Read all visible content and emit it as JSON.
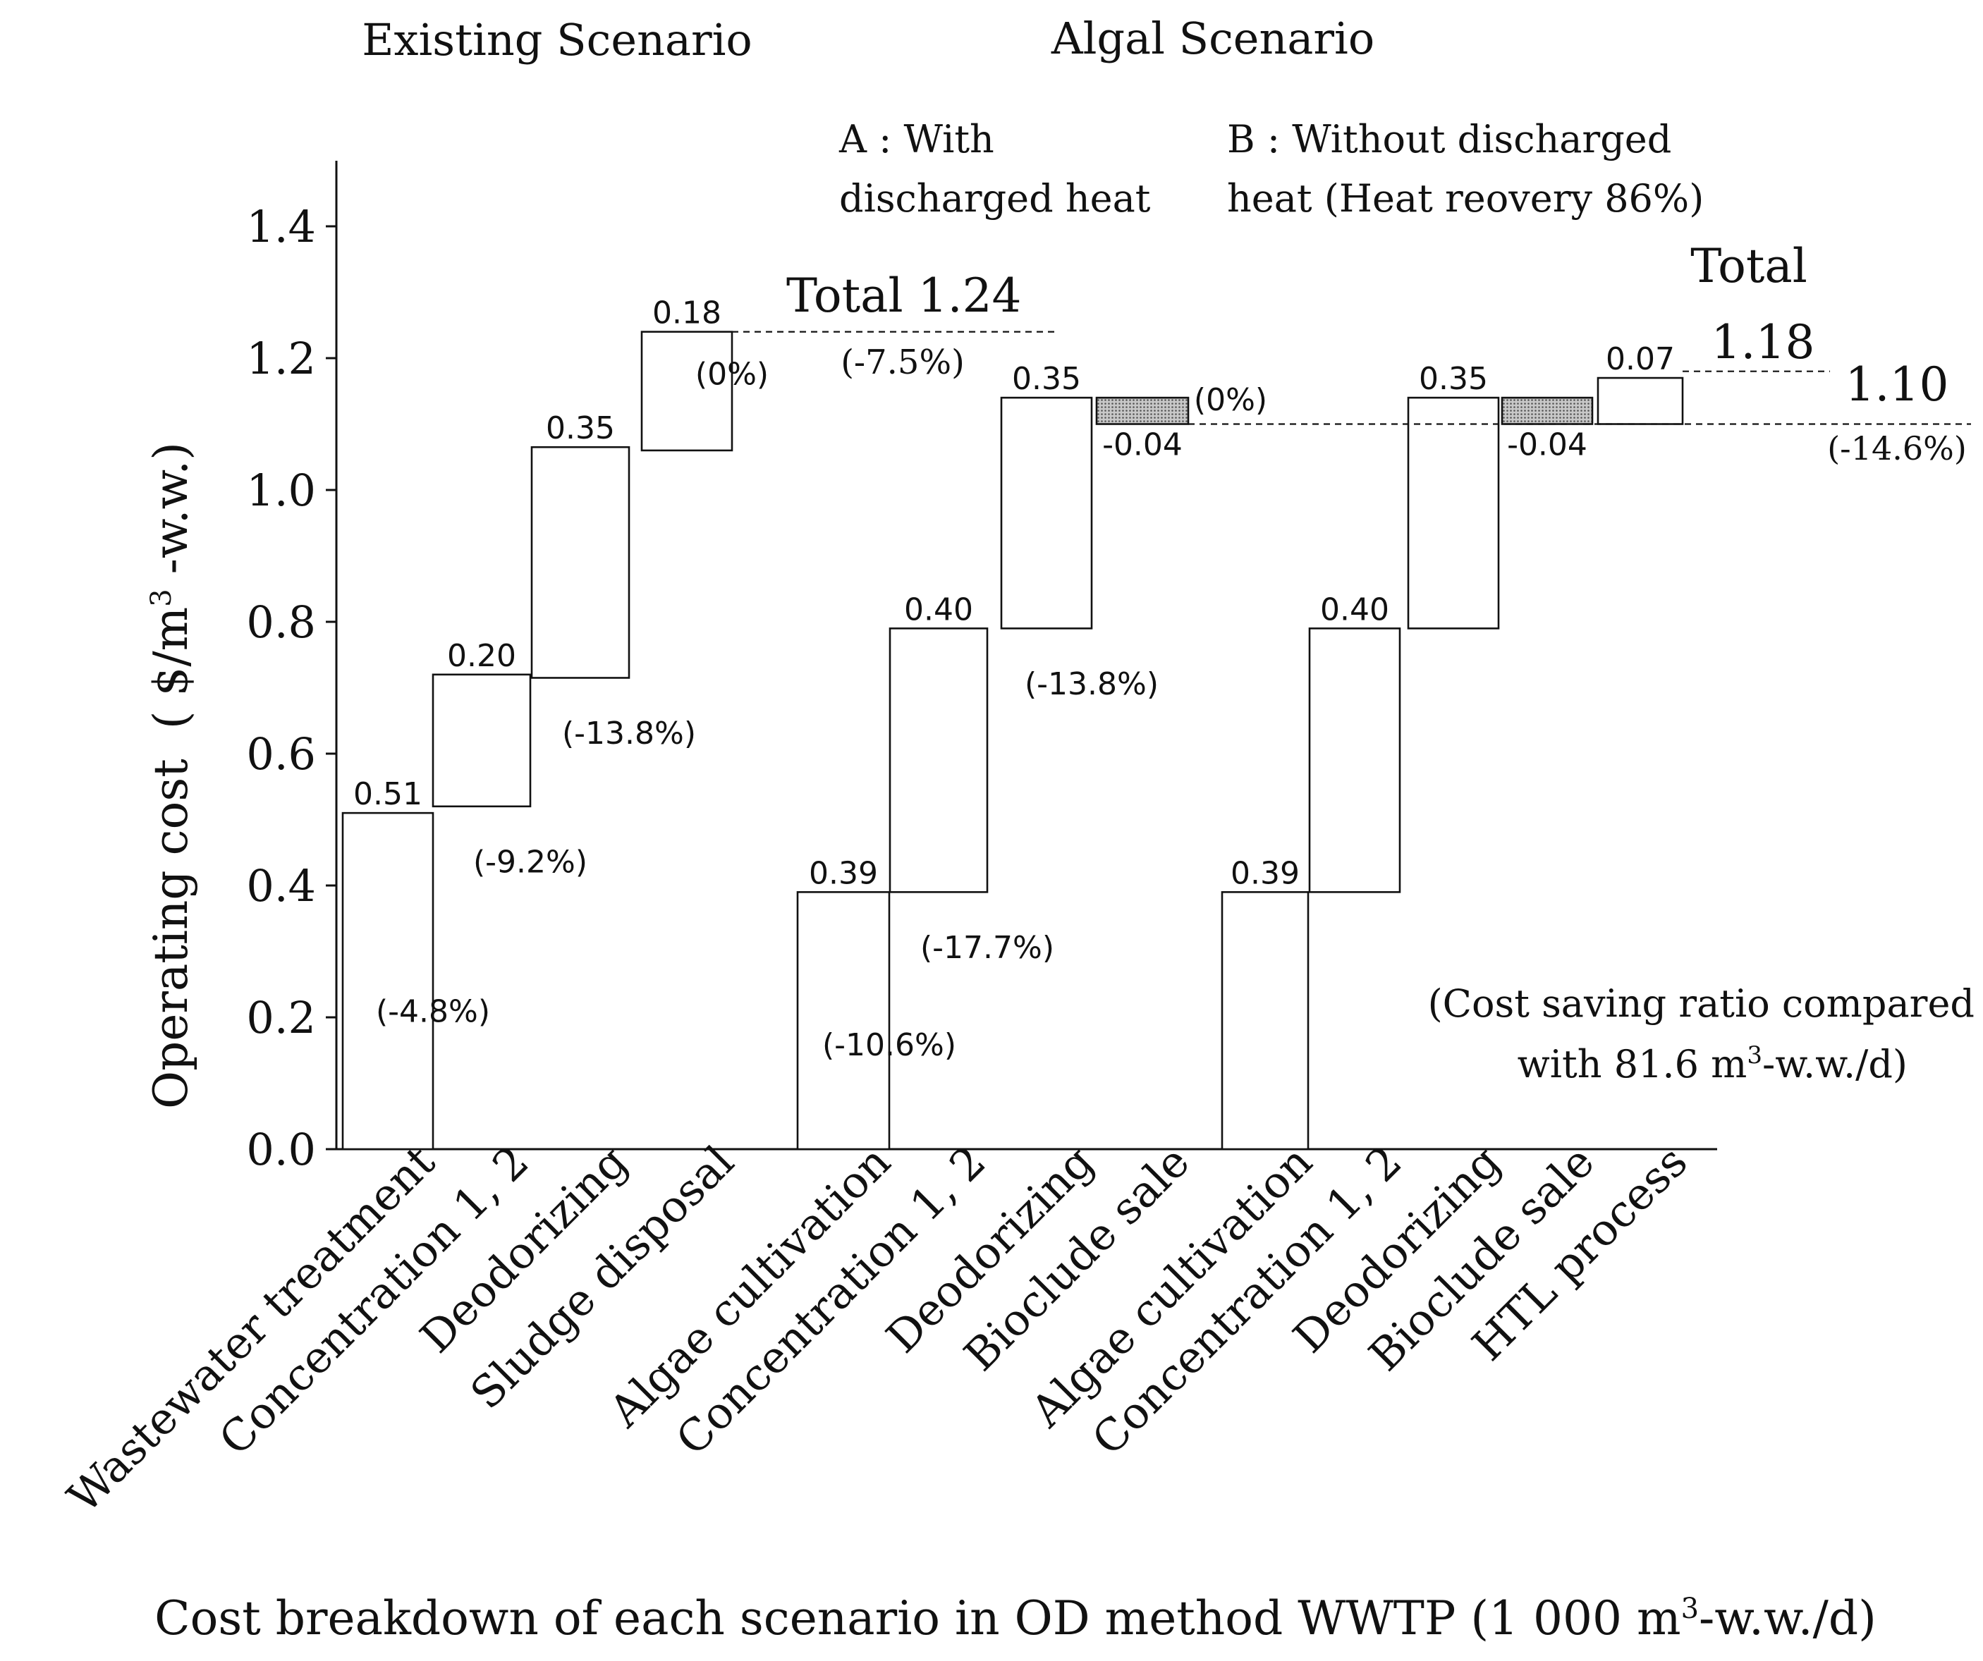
{
  "chart_data": {
    "type": "bar",
    "subtype": "waterfall",
    "xlabel_parts": [
      "Cost breakdown of each scenario in OD method WWTP (1 000 m",
      "3",
      "-w.w./d)"
    ],
    "ylabel_parts": [
      "Operating cost  ( $/m",
      "3",
      " -w.w.)"
    ],
    "ylim": [
      0,
      1.5
    ],
    "yticks": [
      "0.0",
      "0.2",
      "0.4",
      "0.6",
      "0.8",
      "1.0",
      "1.2",
      "1.4"
    ],
    "ytick_values": [
      0,
      0.2,
      0.4,
      0.6,
      0.8,
      1.0,
      1.2,
      1.4
    ],
    "headers": {
      "existing": "Existing Scenario",
      "algal": "Algal Scenario",
      "a_line1": "A : With",
      "a_line2": "discharged heat",
      "b_line1": "B : Without discharged",
      "b_line2": "heat (Heat reovery 86%)"
    },
    "categories": [
      "Wastewater treatment",
      "Concentration 1, 2",
      "Deodorizing",
      "Sludge disposal",
      "Algae cultivation",
      "Concentration 1, 2",
      "Deodorizing",
      "Bioclude sale",
      "Algae cultivation",
      "Concentration 1, 2",
      "Deodorizing",
      "Bioclude sale",
      "HTL process"
    ],
    "series": [
      {
        "values": [
          0.51,
          0.2,
          0.35,
          0.18,
          0.39,
          0.4,
          0.35,
          -0.04,
          0.39,
          0.4,
          0.35,
          -0.04,
          0.07
        ],
        "base": [
          0.0,
          0.52,
          0.715,
          1.06,
          0.0,
          0.39,
          0.79,
          1.14,
          0.0,
          0.39,
          0.79,
          1.14,
          1.1
        ],
        "value_labels": [
          "0.51",
          "0.20",
          "0.35",
          "0.18",
          "0.39",
          "0.40",
          "0.35",
          "-0.04",
          "0.39",
          "0.40",
          "0.35",
          "-0.04",
          "0.07"
        ],
        "saving_labels": [
          "(-4.8%)",
          "(-9.2%)",
          "(-13.8%)",
          "(0%)",
          "(-10.6%)",
          "(-17.7%)",
          "(-13.8%)",
          "(0%)",
          "",
          "",
          "",
          "",
          ""
        ]
      }
    ],
    "totals": [
      {
        "label": "Total 1.24",
        "value": 1.24,
        "saving": "(-7.5%)"
      },
      {
        "label": "Total",
        "value_label": "1.18",
        "value": 1.18
      },
      {
        "label": "1.10",
        "value": 1.1,
        "saving": "(-14.6%)"
      }
    ],
    "note_line1": "(Cost saving ratio compared",
    "note_line2_parts": [
      "with 81.6 m",
      "3",
      "-w.w./d)"
    ],
    "colors": {
      "ink": "#111111",
      "negative_fill": "#9a9a9a"
    },
    "grid": false
  }
}
